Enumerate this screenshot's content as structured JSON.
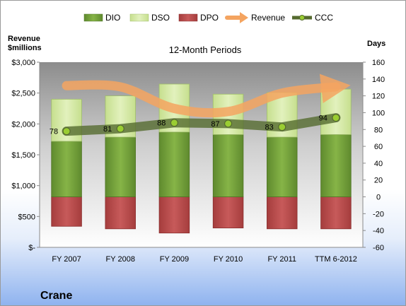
{
  "company": "Crane",
  "colors": {
    "dio": "#76a33c",
    "dso": "#d6e9a8",
    "dpo": "#b94b4b",
    "revenue": "#f4a460",
    "ccc": "#556b2f"
  },
  "chart_data": {
    "type": "bar",
    "title": "12-Month Periods",
    "ylabel_left_line1": "Revenue",
    "ylabel_left_line2": "$millions",
    "ylabel_right": "Days",
    "categories": [
      "FY 2007",
      "FY 2008",
      "FY 2009",
      "FY 2010",
      "FY 2011",
      "TTM 6-2012"
    ],
    "left_axis": {
      "ylim": [
        0,
        3000
      ],
      "ticks": [
        0,
        500,
        1000,
        1500,
        2000,
        2500,
        3000
      ],
      "tick_labels": [
        "$-",
        "$500",
        "$1,000",
        "$1,500",
        "$2,000",
        "$2,500",
        "$3,000"
      ]
    },
    "right_axis": {
      "ylim": [
        -60,
        160
      ],
      "ticks": [
        -60,
        -40,
        -20,
        0,
        20,
        40,
        60,
        80,
        100,
        120,
        140,
        160
      ],
      "tick_labels": [
        "-60",
        "-40",
        "-20",
        "0",
        "20",
        "40",
        "60",
        "80",
        "100",
        "120",
        "140",
        "160"
      ]
    },
    "series": [
      {
        "name": "DIO",
        "type": "stacked_bar",
        "axis": "right",
        "values": [
          66,
          71,
          77,
          74,
          71,
          74
        ]
      },
      {
        "name": "DSO",
        "type": "stacked_bar",
        "axis": "right",
        "values": [
          50,
          49,
          57,
          48,
          53,
          54
        ]
      },
      {
        "name": "DPO",
        "type": "negative_bar",
        "axis": "right",
        "values": [
          -35,
          -38,
          -43,
          -37,
          -38,
          -38
        ]
      },
      {
        "name": "Revenue",
        "type": "line",
        "axis": "left",
        "values": [
          2620,
          2600,
          2250,
          2200,
          2500,
          2600
        ]
      },
      {
        "name": "CCC",
        "type": "line",
        "axis": "right",
        "values": [
          78,
          81,
          88,
          87,
          83,
          94
        ],
        "labels": [
          "78",
          "81",
          "88",
          "87",
          "83",
          "94"
        ]
      }
    ],
    "legend": [
      "DIO",
      "DSO",
      "DPO",
      "Revenue",
      "CCC"
    ],
    "legend_position": "top",
    "grid": false
  }
}
